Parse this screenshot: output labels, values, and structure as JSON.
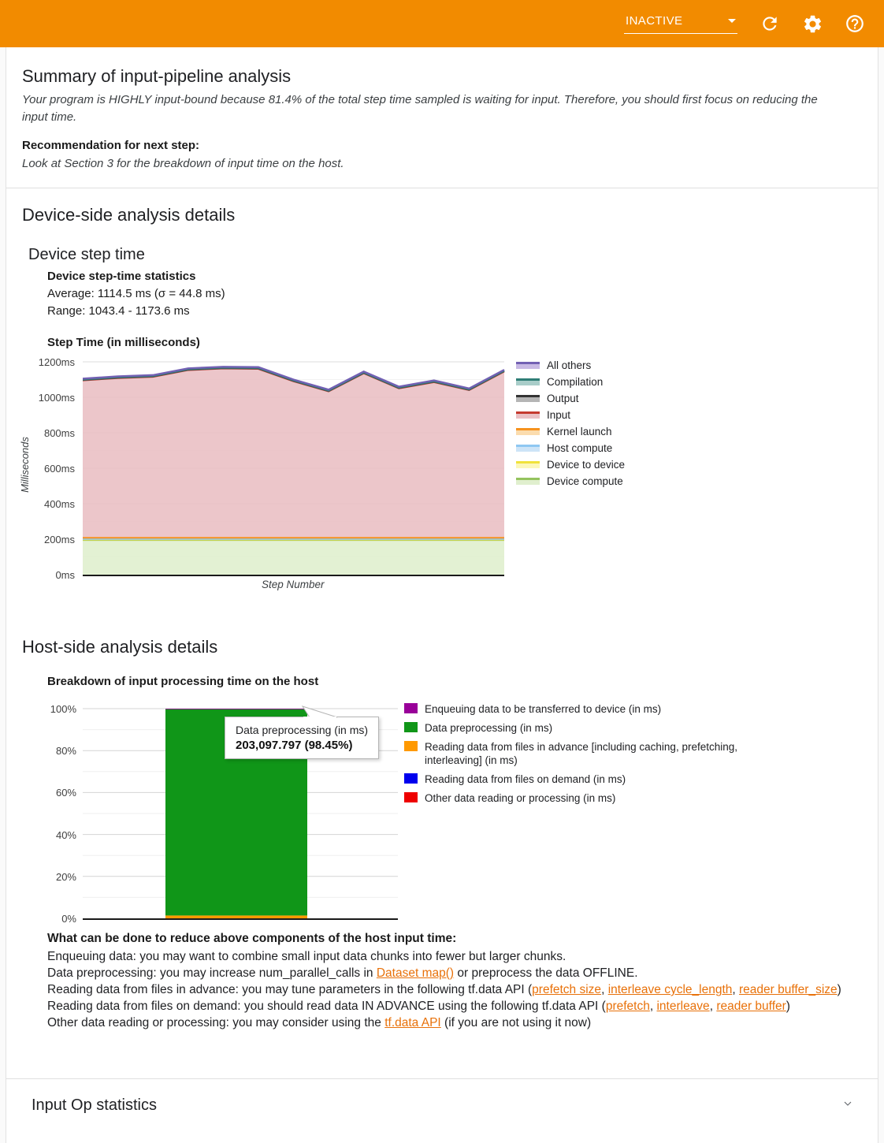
{
  "header": {
    "run_state": "INACTIVE",
    "icons": [
      "refresh",
      "settings",
      "help"
    ]
  },
  "summary": {
    "title": "Summary of input-pipeline analysis",
    "body": "Your program is HIGHLY input-bound because 81.4% of the total step time sampled is waiting for input. Therefore, you should first focus on reducing the input time.",
    "recommendation_label": "Recommendation for next step:",
    "recommendation": "Look at Section 3 for the breakdown of input time on the host."
  },
  "device": {
    "section_title": "Device-side analysis details",
    "subsection_title": "Device step time",
    "stats_title": "Device step-time statistics",
    "stats_average": "Average: 1114.5 ms (σ = 44.8 ms)",
    "stats_range": "Range: 1043.4 - 1173.6 ms",
    "chart_title": "Step Time (in milliseconds)"
  },
  "host": {
    "section_title": "Host-side analysis details",
    "chart_title": "Breakdown of input processing time on the host",
    "advice_title": "What can be done to reduce above components of the host input time:",
    "advice_lines": [
      [
        {
          "text": "Enqueuing data: you may want to combine small input data chunks into fewer but larger chunks."
        }
      ],
      [
        {
          "text": "Data preprocessing: you may increase num_parallel_calls in "
        },
        {
          "link": "Dataset map()"
        },
        {
          "text": " or preprocess the data OFFLINE."
        }
      ],
      [
        {
          "text": "Reading data from files in advance: you may tune parameters in the following tf.data API ("
        },
        {
          "link": "prefetch size"
        },
        {
          "text": ", "
        },
        {
          "link": "interleave cycle_length"
        },
        {
          "text": ", "
        },
        {
          "link": "reader buffer_size"
        },
        {
          "text": ")"
        }
      ],
      [
        {
          "text": "Reading data from files on demand: you should read data IN ADVANCE using the following tf.data API ("
        },
        {
          "link": "prefetch"
        },
        {
          "text": ", "
        },
        {
          "link": "interleave"
        },
        {
          "text": ", "
        },
        {
          "link": "reader buffer"
        },
        {
          "text": ")"
        }
      ],
      [
        {
          "text": "Other data reading or processing: you may consider using the "
        },
        {
          "link": "tf.data API"
        },
        {
          "text": " (if you are not using it now)"
        }
      ]
    ]
  },
  "footer": {
    "title": "Input Op statistics"
  },
  "chart_data": [
    {
      "type": "area",
      "title": "Step Time (in milliseconds)",
      "xlabel": "Step Number",
      "ylabel": "Milliseconds",
      "ylim": [
        0,
        1200
      ],
      "yticks": [
        "0ms",
        "200ms",
        "400ms",
        "600ms",
        "800ms",
        "1000ms",
        "1200ms"
      ],
      "grid": "major 200ms, minor 100ms",
      "legend_position": "right",
      "totals": [
        1105,
        1118,
        1125,
        1163,
        1172,
        1170,
        1100,
        1043,
        1145,
        1060,
        1095,
        1050,
        1155
      ],
      "series_bottom_to_top": [
        {
          "name": "Device compute",
          "value": 195,
          "line": "#94c35e",
          "fill": "#e0efce"
        },
        {
          "name": "Device to device",
          "value": 3,
          "line": "#f0e23b",
          "fill": "#fcf7b8"
        },
        {
          "name": "Host compute",
          "value": 3,
          "line": "#8ec7f2",
          "fill": "#cde4f7"
        },
        {
          "name": "Kernel launch",
          "value": 7,
          "line": "#f6921e",
          "fill": "#fbdcae"
        },
        {
          "name": "Input",
          "value": "auto",
          "line": "#c53a2f",
          "fill": "#eac0c4"
        },
        {
          "name": "Output",
          "value": 2,
          "line": "#4d4d4d",
          "fill": "#bdbdbd"
        },
        {
          "name": "Compilation",
          "value": 4,
          "line": "#2f7e76",
          "fill": "#a9cdc9"
        },
        {
          "name": "All others",
          "value": 4,
          "line": "#7260b3",
          "fill": "#c8b9e4"
        }
      ],
      "legend_top_to_bottom": [
        {
          "label": "All others",
          "line": "#7260b3",
          "fill": "#c8b9e4"
        },
        {
          "label": "Compilation",
          "line": "#2f7e76",
          "fill": "#a9cdc9"
        },
        {
          "label": "Output",
          "line": "#333333",
          "fill": "#b5b5b5"
        },
        {
          "label": "Input",
          "line": "#c53a2f",
          "fill": "#eac0c4"
        },
        {
          "label": "Kernel launch",
          "line": "#f6921e",
          "fill": "#fbdcae"
        },
        {
          "label": "Host compute",
          "line": "#8ec7f2",
          "fill": "#cde4f7"
        },
        {
          "label": "Device to device",
          "line": "#f0e23b",
          "fill": "#fcf7b8"
        },
        {
          "label": "Device compute",
          "line": "#94c35e",
          "fill": "#e0efce"
        }
      ]
    },
    {
      "type": "bar",
      "title": "Breakdown of input processing time on the host",
      "ylim": [
        0,
        100
      ],
      "yticks": [
        "0%",
        "20%",
        "40%",
        "60%",
        "80%",
        "100%"
      ],
      "grid": "major 20%, minor 10%",
      "bar_segments_bottom_to_top": [
        {
          "name": "Reading data from files in advance [including caching, prefetching, interleaving] (in ms)",
          "pct": 1.35,
          "color": "#ff9900"
        },
        {
          "name": "Data preprocessing (in ms)",
          "pct": 98.45,
          "color": "#109618"
        },
        {
          "name": "Enqueuing data to be transferred to device (in ms)",
          "pct": 0.2,
          "color": "#990099"
        }
      ],
      "tooltip": {
        "label": "Data preprocessing (in ms)",
        "value": "203,097.797 (98.45%)"
      },
      "legend_top_to_bottom": [
        {
          "label": "Enqueuing data to be transferred to device (in ms)",
          "color": "#990099"
        },
        {
          "label": "Data preprocessing (in ms)",
          "color": "#109618"
        },
        {
          "label": "Reading data from files in advance [including caching, prefetching, interleaving] (in ms)",
          "color": "#ff9900"
        },
        {
          "label": "Reading data from files on demand (in ms)",
          "color": "#0000ee"
        },
        {
          "label": "Other data reading or processing (in ms)",
          "color": "#ee0000"
        }
      ]
    }
  ]
}
